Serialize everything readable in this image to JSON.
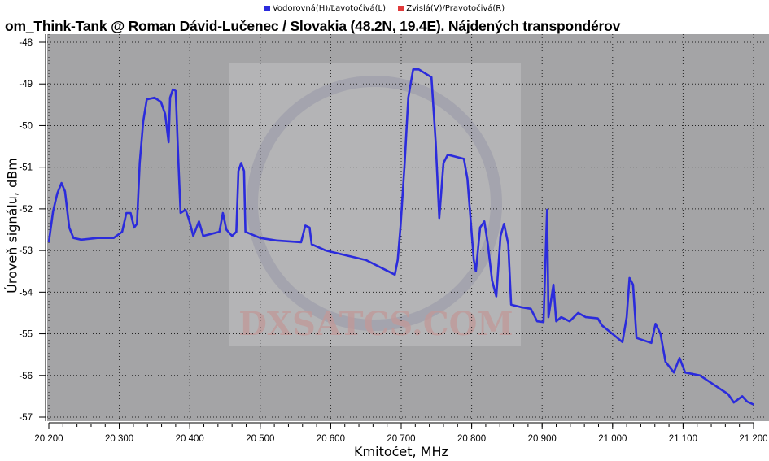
{
  "chart_data": {
    "type": "line",
    "title": "om_Think-Tank @ Roman Dávid-Lučenec / Slovakia (48.2N, 19.4E). Nájdených transpondérov",
    "xlabel": "Kmitočet, MHz",
    "ylabel": "Úroveň signálu, dBm",
    "xlim": [
      20200,
      21200
    ],
    "ylim": [
      -57,
      -48
    ],
    "grid": true,
    "legend_placement": "top",
    "watermark": "DXSATCS.COM",
    "xticks": [
      "20 200",
      "20 300",
      "20 400",
      "20 500",
      "20 600",
      "20 700",
      "20 800",
      "20 900",
      "21 000",
      "21 100",
      "21 200"
    ],
    "yticks": [
      "-48",
      "-49",
      "-50",
      "-51",
      "-52",
      "-53",
      "-54",
      "-55",
      "-56",
      "-57"
    ],
    "series": [
      {
        "name": "Vodorovná(H)/Ľavotočivá(L)",
        "color": "#2b2bdc",
        "x": [
          20200,
          20206,
          20212,
          20218,
          20223,
          20229,
          20235,
          20246,
          20269,
          20292,
          20304,
          20310,
          20316,
          20321,
          20325,
          20329,
          20334,
          20339,
          20350,
          20359,
          20365,
          20370,
          20372,
          20376,
          20380,
          20384,
          20387,
          20394,
          20399,
          20405,
          20413,
          20419,
          20442,
          20447,
          20452,
          20460,
          20466,
          20469,
          20473,
          20477,
          20479,
          20500,
          20523,
          20558,
          20564,
          20570,
          20573,
          20593,
          20650,
          20691,
          20695,
          20699,
          20705,
          20710,
          20717,
          20725,
          20743,
          20749,
          20754,
          20760,
          20766,
          20789,
          20794,
          20803,
          20806,
          20812,
          20818,
          20823,
          20829,
          20835,
          20841,
          20846,
          20852,
          20856,
          20870,
          20884,
          20893,
          20902,
          20907,
          20909,
          20916,
          20920,
          20927,
          20939,
          20951,
          20962,
          20979,
          20985,
          21002,
          21014,
          21020,
          21024,
          21029,
          21034,
          21055,
          21061,
          21068,
          21075,
          21087,
          21095,
          21103,
          21124,
          21147,
          21164,
          21172,
          21184,
          21191,
          21200
        ],
        "y": [
          -52.8,
          -52.06,
          -51.63,
          -51.38,
          -51.58,
          -52.45,
          -52.7,
          -52.74,
          -52.7,
          -52.7,
          -52.55,
          -52.1,
          -52.1,
          -52.45,
          -52.36,
          -50.9,
          -49.9,
          -49.37,
          -49.33,
          -49.43,
          -49.72,
          -50.4,
          -49.33,
          -49.13,
          -49.17,
          -50.9,
          -52.1,
          -52.02,
          -52.26,
          -52.65,
          -52.3,
          -52.65,
          -52.55,
          -52.1,
          -52.5,
          -52.65,
          -52.55,
          -51.09,
          -50.9,
          -51.09,
          -52.55,
          -52.7,
          -52.76,
          -52.8,
          -52.4,
          -52.45,
          -52.85,
          -53.0,
          -53.23,
          -53.58,
          -53.23,
          -52.45,
          -50.9,
          -49.33,
          -48.65,
          -48.65,
          -48.84,
          -50.4,
          -52.22,
          -50.9,
          -50.7,
          -50.8,
          -51.28,
          -53.23,
          -53.5,
          -52.45,
          -52.3,
          -52.85,
          -53.72,
          -54.1,
          -52.65,
          -52.36,
          -52.85,
          -54.3,
          -54.36,
          -54.4,
          -54.7,
          -54.72,
          -52.02,
          -54.6,
          -53.82,
          -54.7,
          -54.6,
          -54.7,
          -54.5,
          -54.6,
          -54.63,
          -54.8,
          -55.03,
          -55.2,
          -54.6,
          -53.66,
          -53.82,
          -55.1,
          -55.22,
          -54.76,
          -55.0,
          -55.67,
          -55.93,
          -55.58,
          -55.93,
          -56.0,
          -56.26,
          -56.45,
          -56.65,
          -56.5,
          -56.63,
          -56.7
        ]
      },
      {
        "name": "Zvislá(V)/Pravotočivá(R)",
        "color": "#e03a3a",
        "x": [],
        "y": []
      }
    ]
  }
}
